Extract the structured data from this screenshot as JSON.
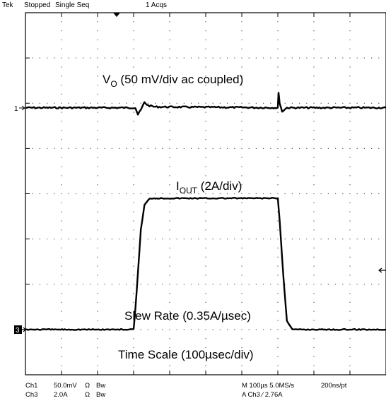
{
  "status_bar": {
    "brand": "Tek",
    "state": "Stopped",
    "mode": "Single Seq",
    "acqs": "1 Acqs"
  },
  "bottom_bar": {
    "ch1_name": "Ch1",
    "ch1_scale": "50.0mV",
    "ch1_imp": "Ω",
    "ch1_bw": "Bw",
    "ch3_name": "Ch3",
    "ch3_scale": "2.0A",
    "ch3_imp": "Ω",
    "ch3_bw": "Bw",
    "horizontal": "M 100µs 5.0MS/s",
    "trigger": "A  Ch3  ⁄  2.76A",
    "resolution": "200ns/pt"
  },
  "chart_data": {
    "type": "line",
    "grid": true,
    "x_divisions": 10,
    "y_divisions": 8,
    "x_unit": "div",
    "channel_markers": {
      "ch1": "1",
      "ch3": "3"
    },
    "annotations": {
      "vo_main": "V",
      "vo_sub": "O",
      "vo_rest": " (50 mV/div ac coupled)",
      "iout_main": "I",
      "iout_sub": "OUT",
      "iout_rest": " (2A/div)",
      "slew": "Slew Rate (0.35A/µsec)",
      "timescale": "Time Scale (100µsec/div)"
    },
    "series": [
      {
        "name": "Ch1",
        "unit": "div",
        "points": [
          [
            0,
            0
          ],
          [
            3.05,
            0
          ],
          [
            3.12,
            -0.15
          ],
          [
            3.2,
            -0.05
          ],
          [
            3.3,
            0.12
          ],
          [
            3.4,
            0.05
          ],
          [
            3.6,
            0.02
          ],
          [
            7.0,
            0
          ],
          [
            7.02,
            0.35
          ],
          [
            7.05,
            0.1
          ],
          [
            7.12,
            -0.08
          ],
          [
            7.25,
            0
          ],
          [
            10,
            0
          ]
        ]
      },
      {
        "name": "Ch3",
        "unit": "div",
        "points": [
          [
            0,
            -3.0
          ],
          [
            3.0,
            -3.0
          ],
          [
            3.05,
            -2.55
          ],
          [
            3.2,
            -0.8
          ],
          [
            3.3,
            -0.25
          ],
          [
            3.45,
            -0.1
          ],
          [
            7.0,
            -0.1
          ],
          [
            7.05,
            -0.6
          ],
          [
            7.15,
            -1.8
          ],
          [
            7.25,
            -2.8
          ],
          [
            7.4,
            -3.0
          ],
          [
            10,
            -3.0
          ]
        ]
      }
    ]
  }
}
